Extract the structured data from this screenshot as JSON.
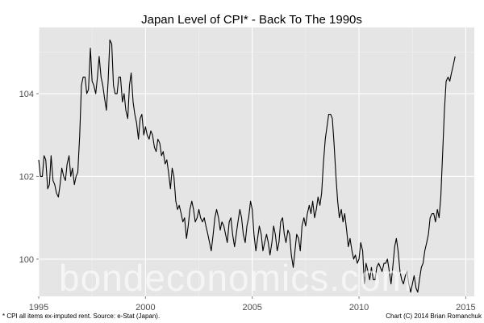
{
  "chart_data": {
    "type": "line",
    "title": "Japan Level of CPI* - Back To The 1990s",
    "xlabel": "",
    "ylabel": "",
    "xlim": [
      1995.0,
      2015.4
    ],
    "ylim": [
      99.1,
      105.6
    ],
    "x_ticks": [
      1995,
      2000,
      2005,
      2010,
      2015
    ],
    "y_ticks": [
      100,
      102,
      104
    ],
    "grid": true,
    "series": [
      {
        "points": [
          [
            1995.0,
            102.4
          ],
          [
            1995.08,
            102.0
          ],
          [
            1995.17,
            102.0
          ],
          [
            1995.25,
            102.5
          ],
          [
            1995.33,
            102.4
          ],
          [
            1995.42,
            101.7
          ],
          [
            1995.5,
            101.8
          ],
          [
            1995.58,
            102.5
          ],
          [
            1995.67,
            101.9
          ],
          [
            1995.75,
            101.8
          ],
          [
            1995.83,
            101.6
          ],
          [
            1995.92,
            101.5
          ],
          [
            1996.0,
            101.8
          ],
          [
            1996.08,
            102.2
          ],
          [
            1996.17,
            102.0
          ],
          [
            1996.25,
            101.9
          ],
          [
            1996.33,
            102.3
          ],
          [
            1996.42,
            102.5
          ],
          [
            1996.5,
            102.0
          ],
          [
            1996.58,
            102.2
          ],
          [
            1996.67,
            101.8
          ],
          [
            1996.75,
            102.0
          ],
          [
            1996.83,
            102.1
          ],
          [
            1996.92,
            103.0
          ],
          [
            1997.0,
            104.2
          ],
          [
            1997.08,
            104.4
          ],
          [
            1997.17,
            104.4
          ],
          [
            1997.25,
            104.0
          ],
          [
            1997.33,
            104.1
          ],
          [
            1997.42,
            105.1
          ],
          [
            1997.5,
            104.3
          ],
          [
            1997.58,
            104.2
          ],
          [
            1997.67,
            104.0
          ],
          [
            1997.75,
            104.4
          ],
          [
            1997.83,
            104.9
          ],
          [
            1997.92,
            104.4
          ],
          [
            1998.0,
            104.2
          ],
          [
            1998.08,
            103.9
          ],
          [
            1998.17,
            103.6
          ],
          [
            1998.25,
            104.3
          ],
          [
            1998.33,
            105.3
          ],
          [
            1998.42,
            105.2
          ],
          [
            1998.5,
            104.2
          ],
          [
            1998.58,
            104.0
          ],
          [
            1998.67,
            104.0
          ],
          [
            1998.75,
            104.4
          ],
          [
            1998.83,
            104.4
          ],
          [
            1998.92,
            103.8
          ],
          [
            1999.0,
            104.0
          ],
          [
            1999.08,
            103.6
          ],
          [
            1999.17,
            103.4
          ],
          [
            1999.25,
            104.2
          ],
          [
            1999.33,
            104.5
          ],
          [
            1999.42,
            103.8
          ],
          [
            1999.5,
            103.5
          ],
          [
            1999.58,
            103.3
          ],
          [
            1999.67,
            102.9
          ],
          [
            1999.75,
            103.4
          ],
          [
            1999.83,
            103.5
          ],
          [
            1999.92,
            103.0
          ],
          [
            2000.0,
            103.2
          ],
          [
            2000.08,
            103.0
          ],
          [
            2000.17,
            102.9
          ],
          [
            2000.25,
            103.1
          ],
          [
            2000.33,
            103.0
          ],
          [
            2000.42,
            102.7
          ],
          [
            2000.5,
            102.6
          ],
          [
            2000.58,
            102.9
          ],
          [
            2000.67,
            102.8
          ],
          [
            2000.75,
            102.5
          ],
          [
            2000.83,
            102.6
          ],
          [
            2000.92,
            102.3
          ],
          [
            2001.0,
            102.4
          ],
          [
            2001.08,
            102.1
          ],
          [
            2001.17,
            101.7
          ],
          [
            2001.25,
            102.2
          ],
          [
            2001.33,
            102.0
          ],
          [
            2001.42,
            101.4
          ],
          [
            2001.5,
            101.2
          ],
          [
            2001.58,
            101.3
          ],
          [
            2001.67,
            101.1
          ],
          [
            2001.75,
            100.9
          ],
          [
            2001.83,
            101.0
          ],
          [
            2001.92,
            100.5
          ],
          [
            2002.0,
            100.8
          ],
          [
            2002.08,
            101.2
          ],
          [
            2002.17,
            101.4
          ],
          [
            2002.25,
            101.2
          ],
          [
            2002.33,
            100.9
          ],
          [
            2002.42,
            101.0
          ],
          [
            2002.5,
            101.2
          ],
          [
            2002.58,
            101.0
          ],
          [
            2002.67,
            100.9
          ],
          [
            2002.75,
            101.0
          ],
          [
            2002.83,
            100.8
          ],
          [
            2002.92,
            100.6
          ],
          [
            2003.0,
            100.4
          ],
          [
            2003.08,
            100.2
          ],
          [
            2003.17,
            100.6
          ],
          [
            2003.25,
            101.0
          ],
          [
            2003.33,
            101.2
          ],
          [
            2003.42,
            101.0
          ],
          [
            2003.5,
            100.7
          ],
          [
            2003.58,
            100.9
          ],
          [
            2003.67,
            100.8
          ],
          [
            2003.75,
            100.6
          ],
          [
            2003.83,
            100.4
          ],
          [
            2003.92,
            100.9
          ],
          [
            2004.0,
            101.0
          ],
          [
            2004.08,
            100.6
          ],
          [
            2004.17,
            100.3
          ],
          [
            2004.25,
            100.6
          ],
          [
            2004.33,
            100.9
          ],
          [
            2004.42,
            101.2
          ],
          [
            2004.5,
            101.0
          ],
          [
            2004.58,
            100.6
          ],
          [
            2004.67,
            100.4
          ],
          [
            2004.75,
            100.8
          ],
          [
            2004.83,
            101.0
          ],
          [
            2004.92,
            101.4
          ],
          [
            2005.0,
            101.2
          ],
          [
            2005.08,
            100.6
          ],
          [
            2005.17,
            100.2
          ],
          [
            2005.25,
            100.5
          ],
          [
            2005.33,
            100.8
          ],
          [
            2005.42,
            100.6
          ],
          [
            2005.5,
            100.2
          ],
          [
            2005.58,
            100.4
          ],
          [
            2005.67,
            100.6
          ],
          [
            2005.75,
            100.4
          ],
          [
            2005.83,
            100.1
          ],
          [
            2005.92,
            100.4
          ],
          [
            2006.0,
            100.8
          ],
          [
            2006.08,
            100.6
          ],
          [
            2006.17,
            100.2
          ],
          [
            2006.25,
            100.4
          ],
          [
            2006.33,
            100.9
          ],
          [
            2006.42,
            101.0
          ],
          [
            2006.5,
            100.6
          ],
          [
            2006.58,
            100.4
          ],
          [
            2006.67,
            100.7
          ],
          [
            2006.75,
            100.6
          ],
          [
            2006.83,
            100.1
          ],
          [
            2006.92,
            99.8
          ],
          [
            2007.0,
            100.2
          ],
          [
            2007.08,
            100.6
          ],
          [
            2007.17,
            100.5
          ],
          [
            2007.25,
            100.2
          ],
          [
            2007.33,
            100.8
          ],
          [
            2007.42,
            101.0
          ],
          [
            2007.5,
            100.8
          ],
          [
            2007.58,
            101.1
          ],
          [
            2007.67,
            101.3
          ],
          [
            2007.75,
            101.1
          ],
          [
            2007.83,
            101.4
          ],
          [
            2007.92,
            101.0
          ],
          [
            2008.0,
            101.2
          ],
          [
            2008.08,
            101.5
          ],
          [
            2008.17,
            101.3
          ],
          [
            2008.25,
            101.6
          ],
          [
            2008.33,
            102.3
          ],
          [
            2008.42,
            102.9
          ],
          [
            2008.5,
            103.2
          ],
          [
            2008.58,
            103.5
          ],
          [
            2008.67,
            103.5
          ],
          [
            2008.75,
            103.4
          ],
          [
            2008.83,
            102.8
          ],
          [
            2008.92,
            102.0
          ],
          [
            2009.0,
            101.4
          ],
          [
            2009.08,
            101.0
          ],
          [
            2009.17,
            101.2
          ],
          [
            2009.25,
            100.9
          ],
          [
            2009.33,
            101.1
          ],
          [
            2009.42,
            100.7
          ],
          [
            2009.5,
            100.3
          ],
          [
            2009.58,
            100.5
          ],
          [
            2009.67,
            100.2
          ],
          [
            2009.75,
            100.0
          ],
          [
            2009.83,
            100.1
          ],
          [
            2009.92,
            99.9
          ],
          [
            2010.0,
            100.0
          ],
          [
            2010.08,
            100.4
          ],
          [
            2010.17,
            100.2
          ],
          [
            2010.25,
            99.4
          ],
          [
            2010.33,
            99.9
          ],
          [
            2010.42,
            99.7
          ],
          [
            2010.5,
            99.5
          ],
          [
            2010.58,
            99.8
          ],
          [
            2010.67,
            99.5
          ],
          [
            2010.75,
            99.5
          ],
          [
            2010.83,
            99.8
          ],
          [
            2010.92,
            99.9
          ],
          [
            2011.0,
            99.8
          ],
          [
            2011.08,
            99.7
          ],
          [
            2011.17,
            99.9
          ],
          [
            2011.25,
            99.9
          ],
          [
            2011.33,
            100.0
          ],
          [
            2011.42,
            99.7
          ],
          [
            2011.5,
            99.4
          ],
          [
            2011.58,
            99.8
          ],
          [
            2011.67,
            100.3
          ],
          [
            2011.75,
            100.5
          ],
          [
            2011.83,
            100.2
          ],
          [
            2011.92,
            99.7
          ],
          [
            2012.0,
            99.5
          ],
          [
            2012.08,
            99.4
          ],
          [
            2012.17,
            99.6
          ],
          [
            2012.25,
            99.7
          ],
          [
            2012.33,
            99.4
          ],
          [
            2012.42,
            99.2
          ],
          [
            2012.5,
            99.4
          ],
          [
            2012.58,
            99.6
          ],
          [
            2012.67,
            99.3
          ],
          [
            2012.75,
            99.2
          ],
          [
            2012.83,
            99.5
          ],
          [
            2012.92,
            99.8
          ],
          [
            2013.0,
            99.9
          ],
          [
            2013.08,
            100.2
          ],
          [
            2013.17,
            100.4
          ],
          [
            2013.25,
            100.6
          ],
          [
            2013.33,
            101.0
          ],
          [
            2013.42,
            101.1
          ],
          [
            2013.5,
            101.1
          ],
          [
            2013.58,
            100.9
          ],
          [
            2013.67,
            101.2
          ],
          [
            2013.75,
            101.0
          ],
          [
            2013.83,
            101.5
          ],
          [
            2013.92,
            102.6
          ],
          [
            2014.0,
            103.6
          ],
          [
            2014.08,
            104.3
          ],
          [
            2014.17,
            104.4
          ],
          [
            2014.25,
            104.3
          ],
          [
            2014.33,
            104.5
          ],
          [
            2014.42,
            104.7
          ],
          [
            2014.5,
            104.9
          ]
        ]
      }
    ],
    "annotations": {
      "footnote_left": "* CPI all items ex-imputed rent. Source: e-Stat (Japan).",
      "footnote_right": "Chart (C) 2014 Brian Romanchuk",
      "watermark": "bondeconomics.com"
    },
    "colors": {
      "panel_background": "#e5e5e5",
      "grid_major": "#ffffff",
      "line": "#000000",
      "tick_text": "#4d4d4d"
    }
  }
}
